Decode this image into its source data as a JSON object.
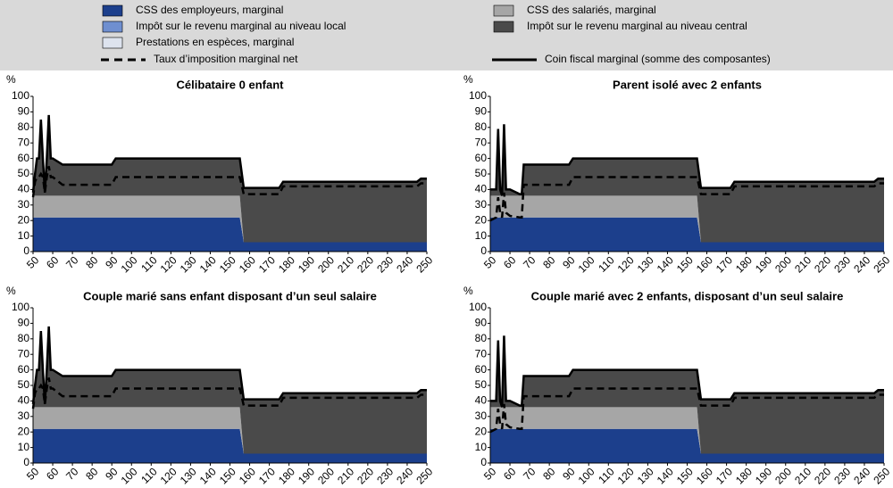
{
  "legend": [
    {
      "name": "CSS des employeurs, marginal",
      "color": "#1c3f8c",
      "style": "area"
    },
    {
      "name": "CSS des salariés, marginal",
      "color": "#a6a6a6",
      "style": "area"
    },
    {
      "name": "Impôt sur le revenu marginal au niveau local",
      "color": "#6f8fd0",
      "style": "area"
    },
    {
      "name": "Impôt sur le revenu marginal au niveau central",
      "color": "#4a4a4a",
      "style": "area"
    },
    {
      "name": "Prestations en espèces, marginal",
      "color": "#dde3ee",
      "style": "area"
    },
    {
      "name": "Taux d’imposition marginal net",
      "color": "#000000",
      "style": "dashed"
    },
    {
      "name": "Coin fiscal marginal (somme des composantes)",
      "color": "#000000",
      "style": "solid"
    }
  ],
  "chart_data": [
    {
      "type": "area",
      "title": "Célibataire 0 enfant",
      "y_label": "%",
      "xlim": [
        50,
        250
      ],
      "xticks": [
        50,
        60,
        70,
        80,
        90,
        100,
        110,
        120,
        130,
        140,
        150,
        160,
        170,
        180,
        190,
        200,
        210,
        220,
        230,
        240,
        250
      ],
      "ylim": [
        0,
        100
      ],
      "yticks": [
        0,
        10,
        20,
        30,
        40,
        50,
        60,
        70,
        80,
        90,
        100
      ],
      "x": [
        50,
        51,
        52,
        53,
        54,
        55,
        56,
        57,
        58,
        59,
        60,
        65,
        90,
        92,
        155,
        157,
        175,
        177,
        245,
        247,
        250
      ],
      "series": [
        {
          "values": [
            22,
            22,
            22,
            22,
            22,
            22,
            22,
            22,
            22,
            22,
            22,
            22,
            22,
            22,
            22,
            6,
            6,
            6,
            6,
            6,
            6
          ]
        },
        {
          "values": [
            14,
            14,
            14,
            14,
            14,
            14,
            14,
            14,
            14,
            14,
            14,
            14,
            14,
            14,
            14,
            0,
            0,
            0,
            0,
            0,
            0
          ]
        },
        {
          "values": [
            0,
            0,
            0,
            0,
            0,
            0,
            0,
            0,
            0,
            0,
            0,
            0,
            0,
            0,
            0,
            0,
            0,
            0,
            0,
            0,
            0
          ]
        },
        {
          "values": [
            2,
            14,
            24,
            24,
            49,
            24,
            2,
            24,
            52,
            24,
            24,
            20,
            20,
            24,
            24,
            35,
            35,
            39,
            39,
            41,
            41
          ]
        },
        {
          "values": [
            0,
            0,
            0,
            0,
            0,
            0,
            0,
            0,
            0,
            0,
            0,
            0,
            0,
            0,
            0,
            0,
            0,
            0,
            0,
            0,
            0
          ]
        },
        {
          "values": [
            35,
            45,
            48,
            48,
            50,
            48,
            38,
            48,
            55,
            48,
            48,
            43,
            43,
            48,
            48,
            37,
            37,
            42,
            42,
            44,
            44
          ]
        },
        {
          "values": [
            38,
            50,
            60,
            60,
            85,
            60,
            38,
            60,
            88,
            60,
            60,
            56,
            56,
            60,
            60,
            41,
            41,
            45,
            45,
            47,
            47
          ]
        }
      ]
    },
    {
      "type": "area",
      "title": "Parent isolé avec 2 enfants",
      "y_label": "%",
      "xlim": [
        50,
        250
      ],
      "xticks": [
        50,
        60,
        70,
        80,
        90,
        100,
        110,
        120,
        130,
        140,
        150,
        160,
        170,
        180,
        190,
        200,
        210,
        220,
        230,
        240,
        250
      ],
      "ylim": [
        0,
        100
      ],
      "yticks": [
        0,
        10,
        20,
        30,
        40,
        50,
        60,
        70,
        80,
        90,
        100
      ],
      "x": [
        50,
        53,
        54,
        55,
        56,
        57,
        58,
        60,
        65,
        66,
        67,
        90,
        92,
        155,
        157,
        172,
        174,
        245,
        247,
        250
      ],
      "series": [
        {
          "values": [
            22,
            22,
            22,
            22,
            22,
            22,
            22,
            22,
            22,
            22,
            22,
            22,
            22,
            22,
            6,
            6,
            6,
            6,
            6,
            6
          ]
        },
        {
          "values": [
            14,
            14,
            14,
            14,
            14,
            14,
            14,
            14,
            14,
            14,
            14,
            14,
            14,
            14,
            0,
            0,
            0,
            0,
            0,
            0
          ]
        },
        {
          "values": [
            0,
            0,
            0,
            0,
            0,
            0,
            0,
            0,
            0,
            0,
            0,
            0,
            0,
            0,
            0,
            0,
            0,
            0,
            0,
            0
          ]
        },
        {
          "values": [
            4,
            4,
            43,
            4,
            0,
            46,
            4,
            4,
            1,
            1,
            20,
            20,
            24,
            24,
            35,
            35,
            39,
            39,
            41,
            41
          ]
        },
        {
          "values": [
            0,
            0,
            0,
            0,
            0,
            0,
            0,
            0,
            0,
            0,
            0,
            0,
            0,
            0,
            0,
            0,
            0,
            0,
            0,
            0
          ]
        },
        {
          "values": [
            20,
            22,
            35,
            25,
            22,
            38,
            25,
            23,
            22,
            22,
            43,
            43,
            48,
            48,
            37,
            37,
            42,
            42,
            44,
            44
          ]
        },
        {
          "values": [
            40,
            40,
            79,
            40,
            36,
            82,
            40,
            40,
            37,
            37,
            56,
            56,
            60,
            60,
            41,
            41,
            45,
            45,
            47,
            47
          ]
        }
      ]
    },
    {
      "type": "area",
      "title": "Couple marié sans enfant disposant d’un seul salaire",
      "y_label": "%",
      "xlim": [
        50,
        250
      ],
      "xticks": [
        50,
        60,
        70,
        80,
        90,
        100,
        110,
        120,
        130,
        140,
        150,
        160,
        170,
        180,
        190,
        200,
        210,
        220,
        230,
        240,
        250
      ],
      "ylim": [
        0,
        100
      ],
      "yticks": [
        0,
        10,
        20,
        30,
        40,
        50,
        60,
        70,
        80,
        90,
        100
      ],
      "x": [
        50,
        51,
        52,
        53,
        54,
        55,
        56,
        57,
        58,
        59,
        60,
        65,
        90,
        92,
        155,
        157,
        175,
        177,
        245,
        247,
        250
      ],
      "series": [
        {
          "values": [
            22,
            22,
            22,
            22,
            22,
            22,
            22,
            22,
            22,
            22,
            22,
            22,
            22,
            22,
            22,
            6,
            6,
            6,
            6,
            6,
            6
          ]
        },
        {
          "values": [
            14,
            14,
            14,
            14,
            14,
            14,
            14,
            14,
            14,
            14,
            14,
            14,
            14,
            14,
            14,
            0,
            0,
            0,
            0,
            0,
            0
          ]
        },
        {
          "values": [
            0,
            0,
            0,
            0,
            0,
            0,
            0,
            0,
            0,
            0,
            0,
            0,
            0,
            0,
            0,
            0,
            0,
            0,
            0,
            0,
            0
          ]
        },
        {
          "values": [
            2,
            14,
            24,
            24,
            49,
            24,
            2,
            24,
            52,
            24,
            24,
            20,
            20,
            24,
            24,
            35,
            35,
            39,
            39,
            41,
            41
          ]
        },
        {
          "values": [
            0,
            0,
            0,
            0,
            0,
            0,
            0,
            0,
            0,
            0,
            0,
            0,
            0,
            0,
            0,
            0,
            0,
            0,
            0,
            0,
            0
          ]
        },
        {
          "values": [
            35,
            45,
            48,
            48,
            50,
            48,
            38,
            48,
            55,
            48,
            48,
            43,
            43,
            48,
            48,
            37,
            37,
            42,
            42,
            44,
            44
          ]
        },
        {
          "values": [
            38,
            50,
            60,
            60,
            85,
            60,
            38,
            60,
            88,
            60,
            60,
            56,
            56,
            60,
            60,
            41,
            41,
            45,
            45,
            47,
            47
          ]
        }
      ]
    },
    {
      "type": "area",
      "title": "Couple marié avec 2 enfants, disposant d’un seul salaire",
      "y_label": "%",
      "xlim": [
        50,
        250
      ],
      "xticks": [
        50,
        60,
        70,
        80,
        90,
        100,
        110,
        120,
        130,
        140,
        150,
        160,
        170,
        180,
        190,
        200,
        210,
        220,
        230,
        240,
        250
      ],
      "ylim": [
        0,
        100
      ],
      "yticks": [
        0,
        10,
        20,
        30,
        40,
        50,
        60,
        70,
        80,
        90,
        100
      ],
      "x": [
        50,
        53,
        54,
        55,
        56,
        57,
        58,
        60,
        65,
        66,
        67,
        90,
        92,
        155,
        157,
        172,
        174,
        245,
        247,
        250
      ],
      "series": [
        {
          "values": [
            22,
            22,
            22,
            22,
            22,
            22,
            22,
            22,
            22,
            22,
            22,
            22,
            22,
            22,
            6,
            6,
            6,
            6,
            6,
            6
          ]
        },
        {
          "values": [
            14,
            14,
            14,
            14,
            14,
            14,
            14,
            14,
            14,
            14,
            14,
            14,
            14,
            14,
            0,
            0,
            0,
            0,
            0,
            0
          ]
        },
        {
          "values": [
            0,
            0,
            0,
            0,
            0,
            0,
            0,
            0,
            0,
            0,
            0,
            0,
            0,
            0,
            0,
            0,
            0,
            0,
            0,
            0
          ]
        },
        {
          "values": [
            4,
            4,
            43,
            4,
            0,
            46,
            4,
            4,
            1,
            1,
            20,
            20,
            24,
            24,
            35,
            35,
            39,
            39,
            41,
            41
          ]
        },
        {
          "values": [
            0,
            0,
            0,
            0,
            0,
            0,
            0,
            0,
            0,
            0,
            0,
            0,
            0,
            0,
            0,
            0,
            0,
            0,
            0,
            0
          ]
        },
        {
          "values": [
            20,
            22,
            35,
            25,
            22,
            38,
            25,
            23,
            22,
            22,
            43,
            43,
            48,
            48,
            37,
            37,
            42,
            42,
            44,
            44
          ]
        },
        {
          "values": [
            40,
            40,
            79,
            40,
            36,
            82,
            40,
            40,
            37,
            37,
            56,
            56,
            60,
            60,
            41,
            41,
            45,
            45,
            47,
            47
          ]
        }
      ]
    }
  ]
}
